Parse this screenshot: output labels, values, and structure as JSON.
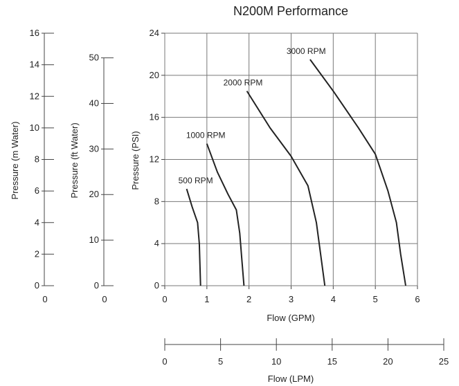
{
  "chart_data": {
    "type": "line",
    "title": "N200M Performance",
    "xlabel": "Flow (GPM)",
    "ylabel": "Pressure (PSI)",
    "xlim": [
      0,
      6
    ],
    "ylim": [
      0,
      24
    ],
    "x_ticks": [
      "0",
      "1",
      "2",
      "3",
      "4",
      "5",
      "6"
    ],
    "y_ticks": [
      "0",
      "4",
      "8",
      "12",
      "16",
      "20",
      "24"
    ],
    "grid": true,
    "series": [
      {
        "name": "500 RPM",
        "points": [
          [
            0.52,
            9.2
          ],
          [
            0.65,
            7.5
          ],
          [
            0.78,
            6.0
          ],
          [
            0.82,
            4.0
          ],
          [
            0.85,
            0
          ]
        ]
      },
      {
        "name": "1000 RPM",
        "points": [
          [
            1.0,
            13.5
          ],
          [
            1.25,
            10.8
          ],
          [
            1.5,
            8.7
          ],
          [
            1.7,
            7.2
          ],
          [
            1.78,
            5.0
          ],
          [
            1.82,
            3.0
          ],
          [
            1.88,
            0
          ]
        ]
      },
      {
        "name": "2000 RPM",
        "points": [
          [
            1.95,
            18.5
          ],
          [
            2.5,
            15.0
          ],
          [
            3.0,
            12.3
          ],
          [
            3.4,
            9.5
          ],
          [
            3.6,
            6.0
          ],
          [
            3.7,
            3.0
          ],
          [
            3.8,
            0
          ]
        ]
      },
      {
        "name": "3000 RPM",
        "points": [
          [
            3.45,
            21.5
          ],
          [
            4.0,
            18.5
          ],
          [
            4.6,
            15.0
          ],
          [
            5.0,
            12.5
          ],
          [
            5.3,
            9.0
          ],
          [
            5.5,
            6.0
          ],
          [
            5.6,
            3.0
          ],
          [
            5.72,
            0
          ]
        ]
      }
    ],
    "secondary_axes": [
      {
        "label": "Pressure (m Water)",
        "ticks": [
          "0",
          "2",
          "4",
          "6",
          "8",
          "10",
          "12",
          "14",
          "16"
        ],
        "range": [
          0,
          16
        ],
        "base_label": "0"
      },
      {
        "label": "Pressure (ft Water)",
        "ticks": [
          "0",
          "10",
          "20",
          "30",
          "40",
          "50"
        ],
        "range": [
          0,
          55.4
        ],
        "base_label": "0"
      },
      {
        "label": "Flow (LPM)",
        "ticks": [
          "0",
          "5",
          "10",
          "15",
          "20",
          "25"
        ],
        "range": [
          0,
          25
        ]
      }
    ]
  }
}
